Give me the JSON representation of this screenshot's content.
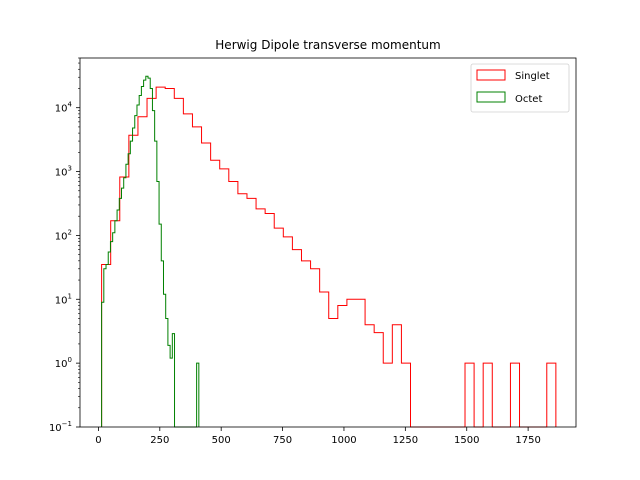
{
  "chart_data": {
    "type": "histogram",
    "title": "Herwig Dipole transverse momentum",
    "xlabel": "",
    "ylabel": "",
    "xlim": [
      -75,
      1945
    ],
    "ylim": [
      0.1,
      60000
    ],
    "yscale": "log",
    "xticks": [
      0,
      250,
      500,
      750,
      1000,
      1250,
      1500,
      1750
    ],
    "yticks": [
      {
        "value": 0.1,
        "sup": "−1"
      },
      {
        "value": 1,
        "sup": "0"
      },
      {
        "value": 10,
        "sup": "1"
      },
      {
        "value": 100,
        "sup": "2"
      },
      {
        "value": 1000,
        "sup": "3"
      },
      {
        "value": 10000,
        "sup": "4"
      }
    ],
    "ytick_base": "10",
    "legend": {
      "position": "top-right"
    },
    "series": [
      {
        "name": "Singlet",
        "color": "#ff0000",
        "bin_width": 37,
        "bins_start": 13,
        "values": [
          35,
          170,
          820,
          3700,
          7200,
          14000,
          21000,
          20000,
          14000,
          8000,
          5000,
          2800,
          1500,
          1100,
          700,
          450,
          380,
          260,
          220,
          130,
          95,
          60,
          40,
          30,
          13,
          5,
          8,
          10,
          10,
          4,
          3,
          1,
          4,
          1,
          0,
          0,
          0,
          0,
          0,
          0,
          1,
          0,
          1,
          0,
          0,
          1,
          0,
          0,
          0,
          1
        ]
      },
      {
        "name": "Octet",
        "color": "#008000",
        "bin_width": 9,
        "bins_start": 13,
        "values": [
          9,
          30,
          35,
          55,
          80,
          110,
          170,
          250,
          380,
          550,
          800,
          1300,
          1900,
          3000,
          4800,
          7500,
          11000,
          15500,
          21500,
          27000,
          31000,
          29000,
          20000,
          9000,
          3000,
          700,
          150,
          40,
          12,
          5,
          1.9,
          1.2,
          2.9,
          0,
          0,
          0,
          0,
          0,
          0,
          0,
          0,
          0,
          0,
          1
        ]
      }
    ]
  }
}
